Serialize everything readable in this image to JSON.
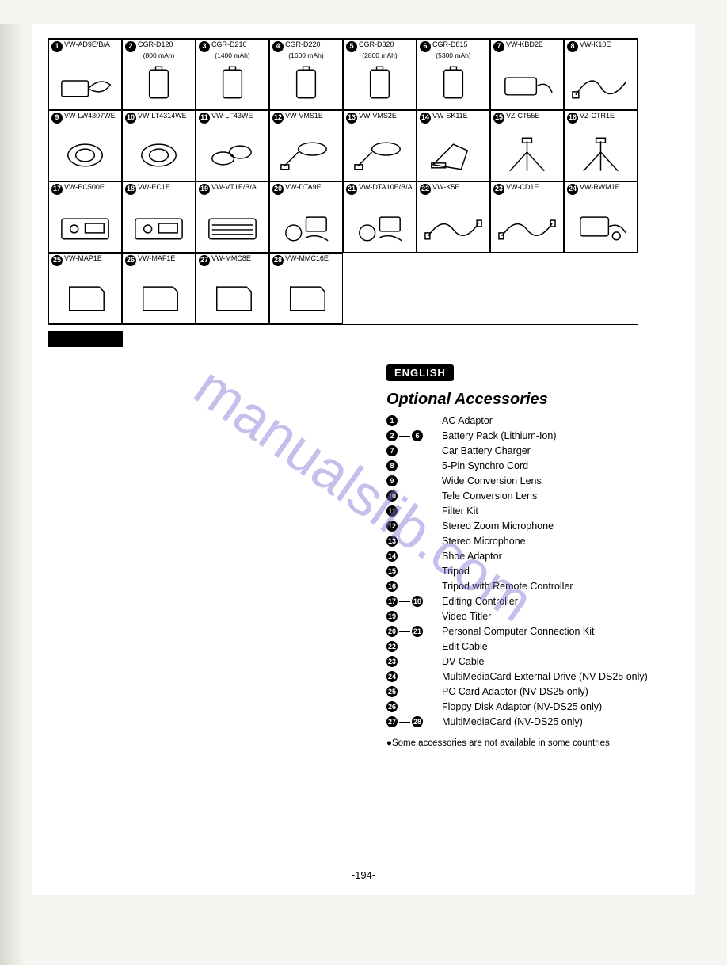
{
  "watermark_text": "manualslib.com",
  "page_number": "-194-",
  "language_badge": "ENGLISH",
  "section_title": "Optional Accessories",
  "footnote": "●Some accessories are not available in some countries.",
  "grid": {
    "columns": 8,
    "items": [
      {
        "n": "1",
        "label": "VW-AD9E/B/A",
        "sub": "",
        "type": "adaptor"
      },
      {
        "n": "2",
        "label": "CGR-D120",
        "sub": "(800 mAh)",
        "type": "battery"
      },
      {
        "n": "3",
        "label": "CGR-D210",
        "sub": "(1400 mAh)",
        "type": "battery"
      },
      {
        "n": "4",
        "label": "CGR-D220",
        "sub": "(1600 mAh)",
        "type": "battery"
      },
      {
        "n": "5",
        "label": "CGR-D320",
        "sub": "(2800 mAh)",
        "type": "battery"
      },
      {
        "n": "6",
        "label": "CGR-D815",
        "sub": "(5300 mAh)",
        "type": "battery"
      },
      {
        "n": "7",
        "label": "VW-KBD2E",
        "sub": "",
        "type": "charger"
      },
      {
        "n": "8",
        "label": "VW-K10E",
        "sub": "",
        "type": "cord"
      },
      {
        "n": "9",
        "label": "VW-LW4307WE",
        "sub": "",
        "type": "lens"
      },
      {
        "n": "10",
        "label": "VW-LT4314WE",
        "sub": "",
        "type": "lens"
      },
      {
        "n": "11",
        "label": "VW-LF43WE",
        "sub": "",
        "type": "filter"
      },
      {
        "n": "12",
        "label": "VW-VMS1E",
        "sub": "",
        "type": "mic"
      },
      {
        "n": "13",
        "label": "VW-VMS2E",
        "sub": "",
        "type": "mic"
      },
      {
        "n": "14",
        "label": "VW-SK11E",
        "sub": "",
        "type": "shoe"
      },
      {
        "n": "15",
        "label": "VZ-CT55E",
        "sub": "",
        "type": "tripod"
      },
      {
        "n": "16",
        "label": "VZ-CTR1E",
        "sub": "",
        "type": "tripod"
      },
      {
        "n": "17",
        "label": "VW-EC500E",
        "sub": "",
        "type": "editcon"
      },
      {
        "n": "18",
        "label": "VW-EC1E",
        "sub": "",
        "type": "editcon"
      },
      {
        "n": "19",
        "label": "VW-VT1E/B/A",
        "sub": "",
        "type": "titler"
      },
      {
        "n": "20",
        "label": "VW-DTA9E",
        "sub": "",
        "type": "pckit"
      },
      {
        "n": "21",
        "label": "VW-DTA10E/B/A",
        "sub": "",
        "type": "pckit"
      },
      {
        "n": "22",
        "label": "VW-K5E",
        "sub": "",
        "type": "cable"
      },
      {
        "n": "23",
        "label": "VW-CD1E",
        "sub": "",
        "type": "cable"
      },
      {
        "n": "24",
        "label": "VW-RWM1E",
        "sub": "",
        "type": "drive"
      },
      {
        "n": "25",
        "label": "VW-MAP1E",
        "sub": "",
        "type": "card"
      },
      {
        "n": "26",
        "label": "VW-MAF1E",
        "sub": "",
        "type": "card"
      },
      {
        "n": "27",
        "label": "VW-MMC8E",
        "sub": "",
        "type": "card"
      },
      {
        "n": "28",
        "label": "VW-MMC16E",
        "sub": "",
        "type": "card"
      }
    ]
  },
  "list": [
    {
      "from": "1",
      "to": null,
      "text": "AC Adaptor"
    },
    {
      "from": "2",
      "to": "6",
      "text": "Battery Pack (Lithium-Ion)"
    },
    {
      "from": "7",
      "to": null,
      "text": "Car Battery Charger"
    },
    {
      "from": "8",
      "to": null,
      "text": "5-Pin Synchro Cord"
    },
    {
      "from": "9",
      "to": null,
      "text": "Wide Conversion Lens"
    },
    {
      "from": "10",
      "to": null,
      "text": "Tele Conversion Lens"
    },
    {
      "from": "11",
      "to": null,
      "text": "Filter Kit"
    },
    {
      "from": "12",
      "to": null,
      "text": "Stereo Zoom Microphone"
    },
    {
      "from": "13",
      "to": null,
      "text": "Stereo Microphone"
    },
    {
      "from": "14",
      "to": null,
      "text": "Shoe Adaptor"
    },
    {
      "from": "15",
      "to": null,
      "text": "Tripod"
    },
    {
      "from": "16",
      "to": null,
      "text": "Tripod with Remote Controller"
    },
    {
      "from": "17",
      "to": "18",
      "text": "Editing Controller"
    },
    {
      "from": "19",
      "to": null,
      "text": "Video Titler"
    },
    {
      "from": "20",
      "to": "21",
      "text": "Personal Computer Connection Kit"
    },
    {
      "from": "22",
      "to": null,
      "text": "Edit Cable"
    },
    {
      "from": "23",
      "to": null,
      "text": "DV Cable"
    },
    {
      "from": "24",
      "to": null,
      "text": "MultiMediaCard External Drive (NV-DS25 only)"
    },
    {
      "from": "25",
      "to": null,
      "text": "PC Card Adaptor (NV-DS25 only)"
    },
    {
      "from": "26",
      "to": null,
      "text": "Floppy Disk Adaptor (NV-DS25 only)"
    },
    {
      "from": "27",
      "to": "28",
      "text": "MultiMediaCard (NV-DS25 only)"
    }
  ]
}
